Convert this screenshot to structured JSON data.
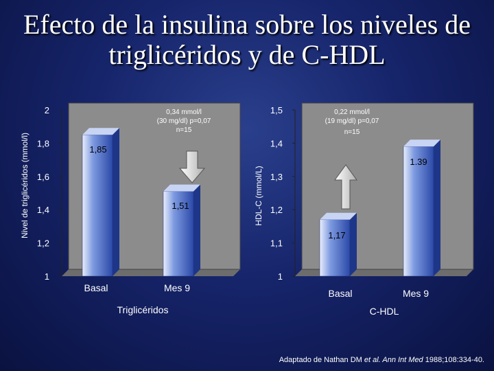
{
  "title_line1": "Efecto de la insulina sobre los niveles de",
  "title_line2": "triglicéridos y de  C-HDL",
  "chart_data": [
    {
      "type": "bar",
      "title": "Triglicéridos",
      "ylabel": "Nivel de triglicéridos (mmol/l)",
      "categories": [
        "Basal",
        "Mes 9"
      ],
      "values": [
        1.85,
        1.51
      ],
      "value_labels": [
        "1,85",
        "1,51"
      ],
      "ylim": [
        1,
        2
      ],
      "ticks": [
        "1",
        "1,2",
        "1,4",
        "1,6",
        "1,8",
        "2"
      ],
      "annotation": [
        "0,34 mmol/l",
        "(30 mg/dl) p=0,07",
        "n=15"
      ],
      "arrow": "down"
    },
    {
      "type": "bar",
      "title": "C-HDL",
      "ylabel": "HDL-C (mmol/L)",
      "categories": [
        "Basal",
        "Mes 9"
      ],
      "values": [
        1.17,
        1.39
      ],
      "value_labels": [
        "1,17",
        "1.39"
      ],
      "ylim": [
        1,
        1.5
      ],
      "ticks": [
        "1",
        "1,1",
        "1,2",
        "1,3",
        "1,4",
        "1,5"
      ],
      "annotation": [
        "0,22 mmol/l",
        "(19 mg/dl) p=0,07",
        "n=15"
      ],
      "arrow": "up"
    }
  ],
  "citation": {
    "prefix": "Adaptado de Nathan DM ",
    "etal": "et al.",
    "journal": " Ann Int Med",
    "suffix": " 1988;108:334-40."
  },
  "colors": {
    "plot_wall": "#8c8c8c",
    "bar_light": "#e8eefc",
    "bar_mid": "#7e9ae0",
    "bar_dark": "#2b49a8"
  }
}
